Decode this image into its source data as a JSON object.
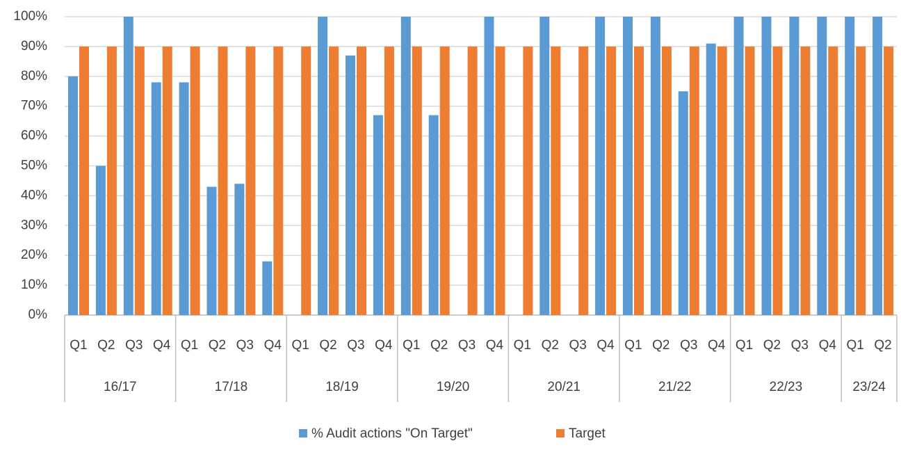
{
  "chart_data": {
    "type": "bar",
    "groups": [
      {
        "name": "16/17",
        "categories": [
          "Q1",
          "Q2",
          "Q3",
          "Q4"
        ]
      },
      {
        "name": "17/18",
        "categories": [
          "Q1",
          "Q2",
          "Q3",
          "Q4"
        ]
      },
      {
        "name": "18/19",
        "categories": [
          "Q1",
          "Q2",
          "Q3",
          "Q4"
        ]
      },
      {
        "name": "19/20",
        "categories": [
          "Q1",
          "Q2",
          "Q3",
          "Q4"
        ]
      },
      {
        "name": "20/21",
        "categories": [
          "Q1",
          "Q2",
          "Q3",
          "Q4"
        ]
      },
      {
        "name": "21/22",
        "categories": [
          "Q1",
          "Q2",
          "Q3",
          "Q4"
        ]
      },
      {
        "name": "22/23",
        "categories": [
          "Q1",
          "Q2",
          "Q3",
          "Q4"
        ]
      },
      {
        "name": "23/24",
        "categories": [
          "Q1",
          "Q2"
        ]
      }
    ],
    "series": [
      {
        "name": "% Audit actions \"On Target\"",
        "color": "#5b9bd5",
        "values": [
          80,
          50,
          100,
          78,
          78,
          43,
          44,
          18,
          null,
          100,
          87,
          67,
          100,
          67,
          null,
          100,
          null,
          100,
          null,
          100,
          100,
          100,
          75,
          91,
          100,
          100,
          100,
          100,
          100,
          100
        ]
      },
      {
        "name": "Target",
        "color": "#ed7d31",
        "values": [
          90,
          90,
          90,
          90,
          90,
          90,
          90,
          90,
          90,
          90,
          90,
          90,
          90,
          90,
          90,
          90,
          90,
          90,
          90,
          90,
          90,
          90,
          90,
          90,
          90,
          90,
          90,
          90,
          90,
          90
        ]
      }
    ],
    "ylim": [
      0,
      100
    ],
    "yticks": [
      {
        "value": 0,
        "label": "0%"
      },
      {
        "value": 10,
        "label": "10%"
      },
      {
        "value": 20,
        "label": "20%"
      },
      {
        "value": 30,
        "label": "30%"
      },
      {
        "value": 40,
        "label": "40%"
      },
      {
        "value": 50,
        "label": "50%"
      },
      {
        "value": 60,
        "label": "60%"
      },
      {
        "value": 70,
        "label": "70%"
      },
      {
        "value": 80,
        "label": "80%"
      },
      {
        "value": 90,
        "label": "90%"
      },
      {
        "value": 100,
        "label": "100%"
      }
    ],
    "grid": true,
    "legend": "bottom"
  }
}
